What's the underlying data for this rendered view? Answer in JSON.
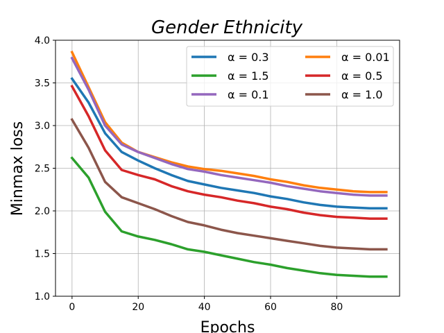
{
  "chart_data": {
    "type": "line",
    "title": "Gender Ethnicity",
    "xlabel": "Epochs",
    "ylabel": "Minmax loss",
    "xlim": [
      -5,
      99
    ],
    "ylim": [
      1.0,
      4.0
    ],
    "xticks": [
      0,
      20,
      40,
      60,
      80
    ],
    "yticks": [
      1.0,
      1.5,
      2.0,
      2.5,
      3.0,
      3.5,
      4.0
    ],
    "grid": true,
    "legend_position": "top-right",
    "x": [
      0,
      5,
      10,
      15,
      20,
      25,
      30,
      35,
      40,
      45,
      50,
      55,
      60,
      65,
      70,
      75,
      80,
      85,
      90,
      95
    ],
    "series": [
      {
        "name": "α = 0.3",
        "color": "#1f77b4",
        "values": [
          3.55,
          3.27,
          2.91,
          2.69,
          2.59,
          2.5,
          2.42,
          2.35,
          2.31,
          2.27,
          2.24,
          2.21,
          2.17,
          2.14,
          2.1,
          2.07,
          2.05,
          2.04,
          2.03,
          2.03
        ]
      },
      {
        "name": "α = 0.01",
        "color": "#ff7f0e",
        "values": [
          3.86,
          3.45,
          3.04,
          2.8,
          2.69,
          2.63,
          2.57,
          2.52,
          2.49,
          2.47,
          2.44,
          2.41,
          2.37,
          2.34,
          2.3,
          2.27,
          2.25,
          2.23,
          2.22,
          2.22
        ]
      },
      {
        "name": "α = 1.5",
        "color": "#2ca02c",
        "values": [
          2.62,
          2.39,
          1.99,
          1.76,
          1.7,
          1.66,
          1.61,
          1.55,
          1.52,
          1.48,
          1.44,
          1.4,
          1.37,
          1.33,
          1.3,
          1.27,
          1.25,
          1.24,
          1.23,
          1.23
        ]
      },
      {
        "name": "α = 0.5",
        "color": "#d62728",
        "values": [
          3.46,
          3.11,
          2.71,
          2.48,
          2.42,
          2.37,
          2.29,
          2.23,
          2.19,
          2.16,
          2.12,
          2.09,
          2.05,
          2.02,
          1.98,
          1.95,
          1.93,
          1.92,
          1.91,
          1.91
        ]
      },
      {
        "name": "α = 0.1",
        "color": "#9467bd",
        "values": [
          3.79,
          3.42,
          3.0,
          2.78,
          2.69,
          2.62,
          2.55,
          2.49,
          2.46,
          2.42,
          2.39,
          2.36,
          2.33,
          2.29,
          2.26,
          2.23,
          2.21,
          2.19,
          2.18,
          2.18
        ]
      },
      {
        "name": "α = 1.0",
        "color": "#8c564b",
        "values": [
          3.07,
          2.74,
          2.34,
          2.16,
          2.09,
          2.02,
          1.94,
          1.87,
          1.83,
          1.78,
          1.74,
          1.71,
          1.68,
          1.65,
          1.62,
          1.59,
          1.57,
          1.56,
          1.55,
          1.55
        ]
      }
    ]
  }
}
